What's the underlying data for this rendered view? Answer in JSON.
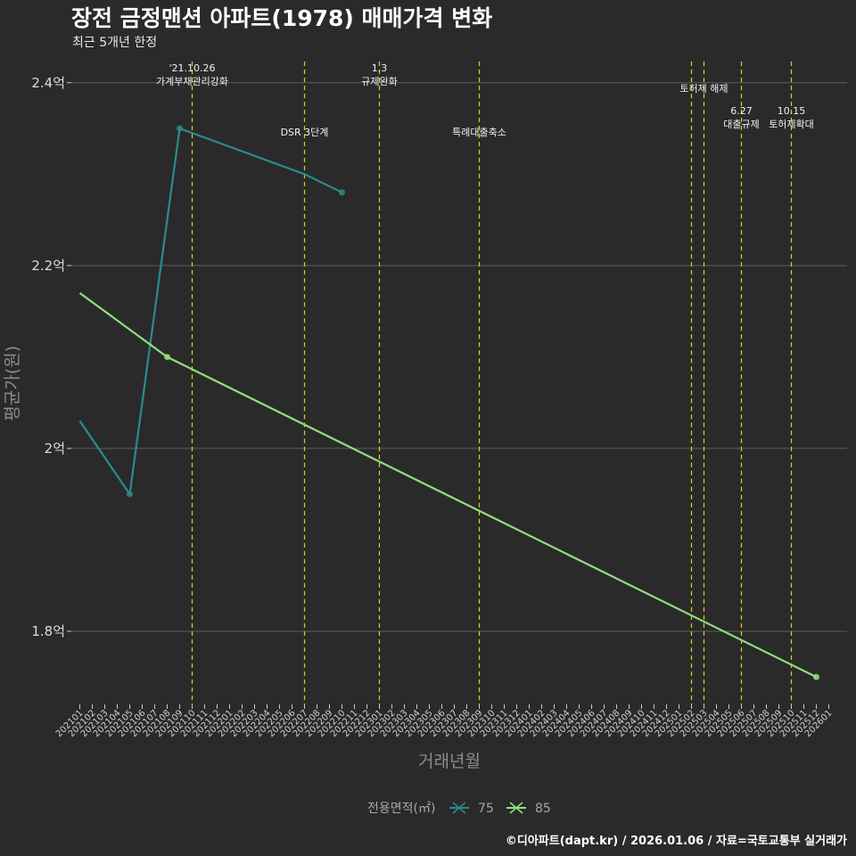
{
  "chart_data": {
    "type": "line",
    "title": "장전 금정맨션 아파트(1978) 매매가격 변화",
    "subtitle": "최근 5개년 한정",
    "xlabel": "거래년월",
    "ylabel": "평균가(원)",
    "caption": "©디아파트(dapt.kr) / 2026.01.06 / 자료=국토교통부 실거래가",
    "legend_title": "전용면적(㎡)",
    "categories": [
      "202101",
      "202102",
      "202103",
      "202104",
      "202105",
      "202106",
      "202107",
      "202108",
      "202109",
      "202110",
      "202111",
      "202112",
      "202201",
      "202202",
      "202203",
      "202204",
      "202205",
      "202206",
      "202207",
      "202208",
      "202209",
      "202210",
      "202211",
      "202212",
      "202301",
      "202302",
      "202303",
      "202304",
      "202305",
      "202306",
      "202307",
      "202308",
      "202309",
      "202310",
      "202311",
      "202312",
      "202401",
      "202402",
      "202403",
      "202404",
      "202405",
      "202406",
      "202407",
      "202408",
      "202409",
      "202410",
      "202411",
      "202412",
      "202501",
      "202502",
      "202503",
      "202504",
      "202505",
      "202506",
      "202507",
      "202508",
      "202509",
      "202510",
      "202511",
      "202512",
      "202601"
    ],
    "y_ticks": [
      {
        "value": 180000000,
        "label": "1.8억"
      },
      {
        "value": 200000000,
        "label": "2억"
      },
      {
        "value": 220000000,
        "label": "2.2억"
      },
      {
        "value": 240000000,
        "label": "2.4억"
      }
    ],
    "ylim": [
      172000000,
      243000000
    ],
    "series": [
      {
        "name": "75",
        "color": "#2a8c8c",
        "points": [
          {
            "x": "202101",
            "y": 203000000
          },
          {
            "x": "202105",
            "y": 195000000
          },
          {
            "x": "202109",
            "y": 235000000
          },
          {
            "x": "202207",
            "y": 230000000
          },
          {
            "x": "202210",
            "y": 228000000
          }
        ],
        "markers": [
          "202105",
          "202109",
          "202210"
        ]
      },
      {
        "name": "85",
        "color": "#8fe07c",
        "points": [
          {
            "x": "202101",
            "y": 217000000
          },
          {
            "x": "202108",
            "y": 210000000
          },
          {
            "x": "202512",
            "y": 175000000
          }
        ],
        "markers": [
          "202108",
          "202512"
        ]
      }
    ],
    "annotations": [
      {
        "x": "202110",
        "lines": [
          "'21.10.26",
          "가계부채관리강화"
        ],
        "level": "top"
      },
      {
        "x": "202207",
        "lines": [
          "DSR 3단계"
        ],
        "level": "mid"
      },
      {
        "x": "202301",
        "lines": [
          "1.3",
          "규제완화"
        ],
        "level": "top"
      },
      {
        "x": "202309",
        "lines": [
          "특례대출축소"
        ],
        "level": "mid"
      },
      {
        "x": "202502",
        "lines": [],
        "level": "none"
      },
      {
        "x": "202503",
        "lines": [
          "토허제 해제"
        ],
        "level": "top2"
      },
      {
        "x": "202506",
        "lines": [
          "6.27",
          "대출규제"
        ],
        "level": "low"
      },
      {
        "x": "202510",
        "lines": [
          "10.15",
          "토허제확대"
        ],
        "level": "low"
      }
    ]
  }
}
